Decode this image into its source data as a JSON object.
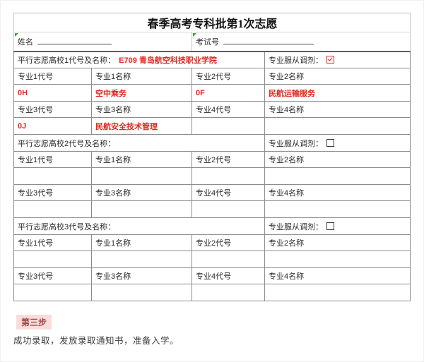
{
  "form": {
    "title": "春季高考专科批第1次志愿",
    "name_label": "姓名",
    "exam_no_label": "考试号"
  },
  "sections": [
    {
      "school_label": "平行志愿高校1代号及名称：",
      "school_value": "E709 青岛航空科技职业学院",
      "adjust_label": "专业服从调剂：",
      "adjust_checked": true,
      "headers_top": [
        "专业1代号",
        "专业1名称",
        "专业2代号",
        "专业2名称"
      ],
      "values_top": [
        "0H",
        "空中乘务",
        "0F",
        "民航运输服务"
      ],
      "headers_bottom": [
        "专业3代号",
        "专业3名称",
        "专业4代号",
        "专业4名称"
      ],
      "values_bottom": [
        "0J",
        "民航安全技术管理",
        "",
        ""
      ]
    },
    {
      "school_label": "平行志愿高校2代号及名称：",
      "school_value": "",
      "adjust_label": "专业服从调剂：",
      "adjust_checked": false,
      "headers_top": [
        "专业1代号",
        "专业1名称",
        "专业2代号",
        "专业2名称"
      ],
      "values_top": [
        "",
        "",
        "",
        ""
      ],
      "headers_bottom": [
        "专业3代号",
        "专业3名称",
        "专业4代号",
        "专业4名称"
      ],
      "values_bottom": [
        "",
        "",
        "",
        ""
      ]
    },
    {
      "school_label": "平行志愿高校3代号及名称：",
      "school_value": "",
      "adjust_label": "专业服从调剂：",
      "adjust_checked": false,
      "headers_top": [
        "专业1代号",
        "专业1名称",
        "专业2代号",
        "专业2名称"
      ],
      "values_top": [
        "",
        "",
        "",
        ""
      ],
      "headers_bottom": [
        "专业3代号",
        "专业3名称",
        "专业4代号",
        "专业4名称"
      ],
      "values_bottom": [
        "",
        "",
        "",
        ""
      ]
    }
  ],
  "step": {
    "label": "第三步",
    "description": "成功录取，发放录取通知书，准备入学。"
  },
  "colors": {
    "accent_red": "#e2271d",
    "step_background": "#fadcda",
    "step_text": "#9c4b46",
    "marker_green": "#3fa037",
    "grid_border": "#8d8d8d"
  }
}
